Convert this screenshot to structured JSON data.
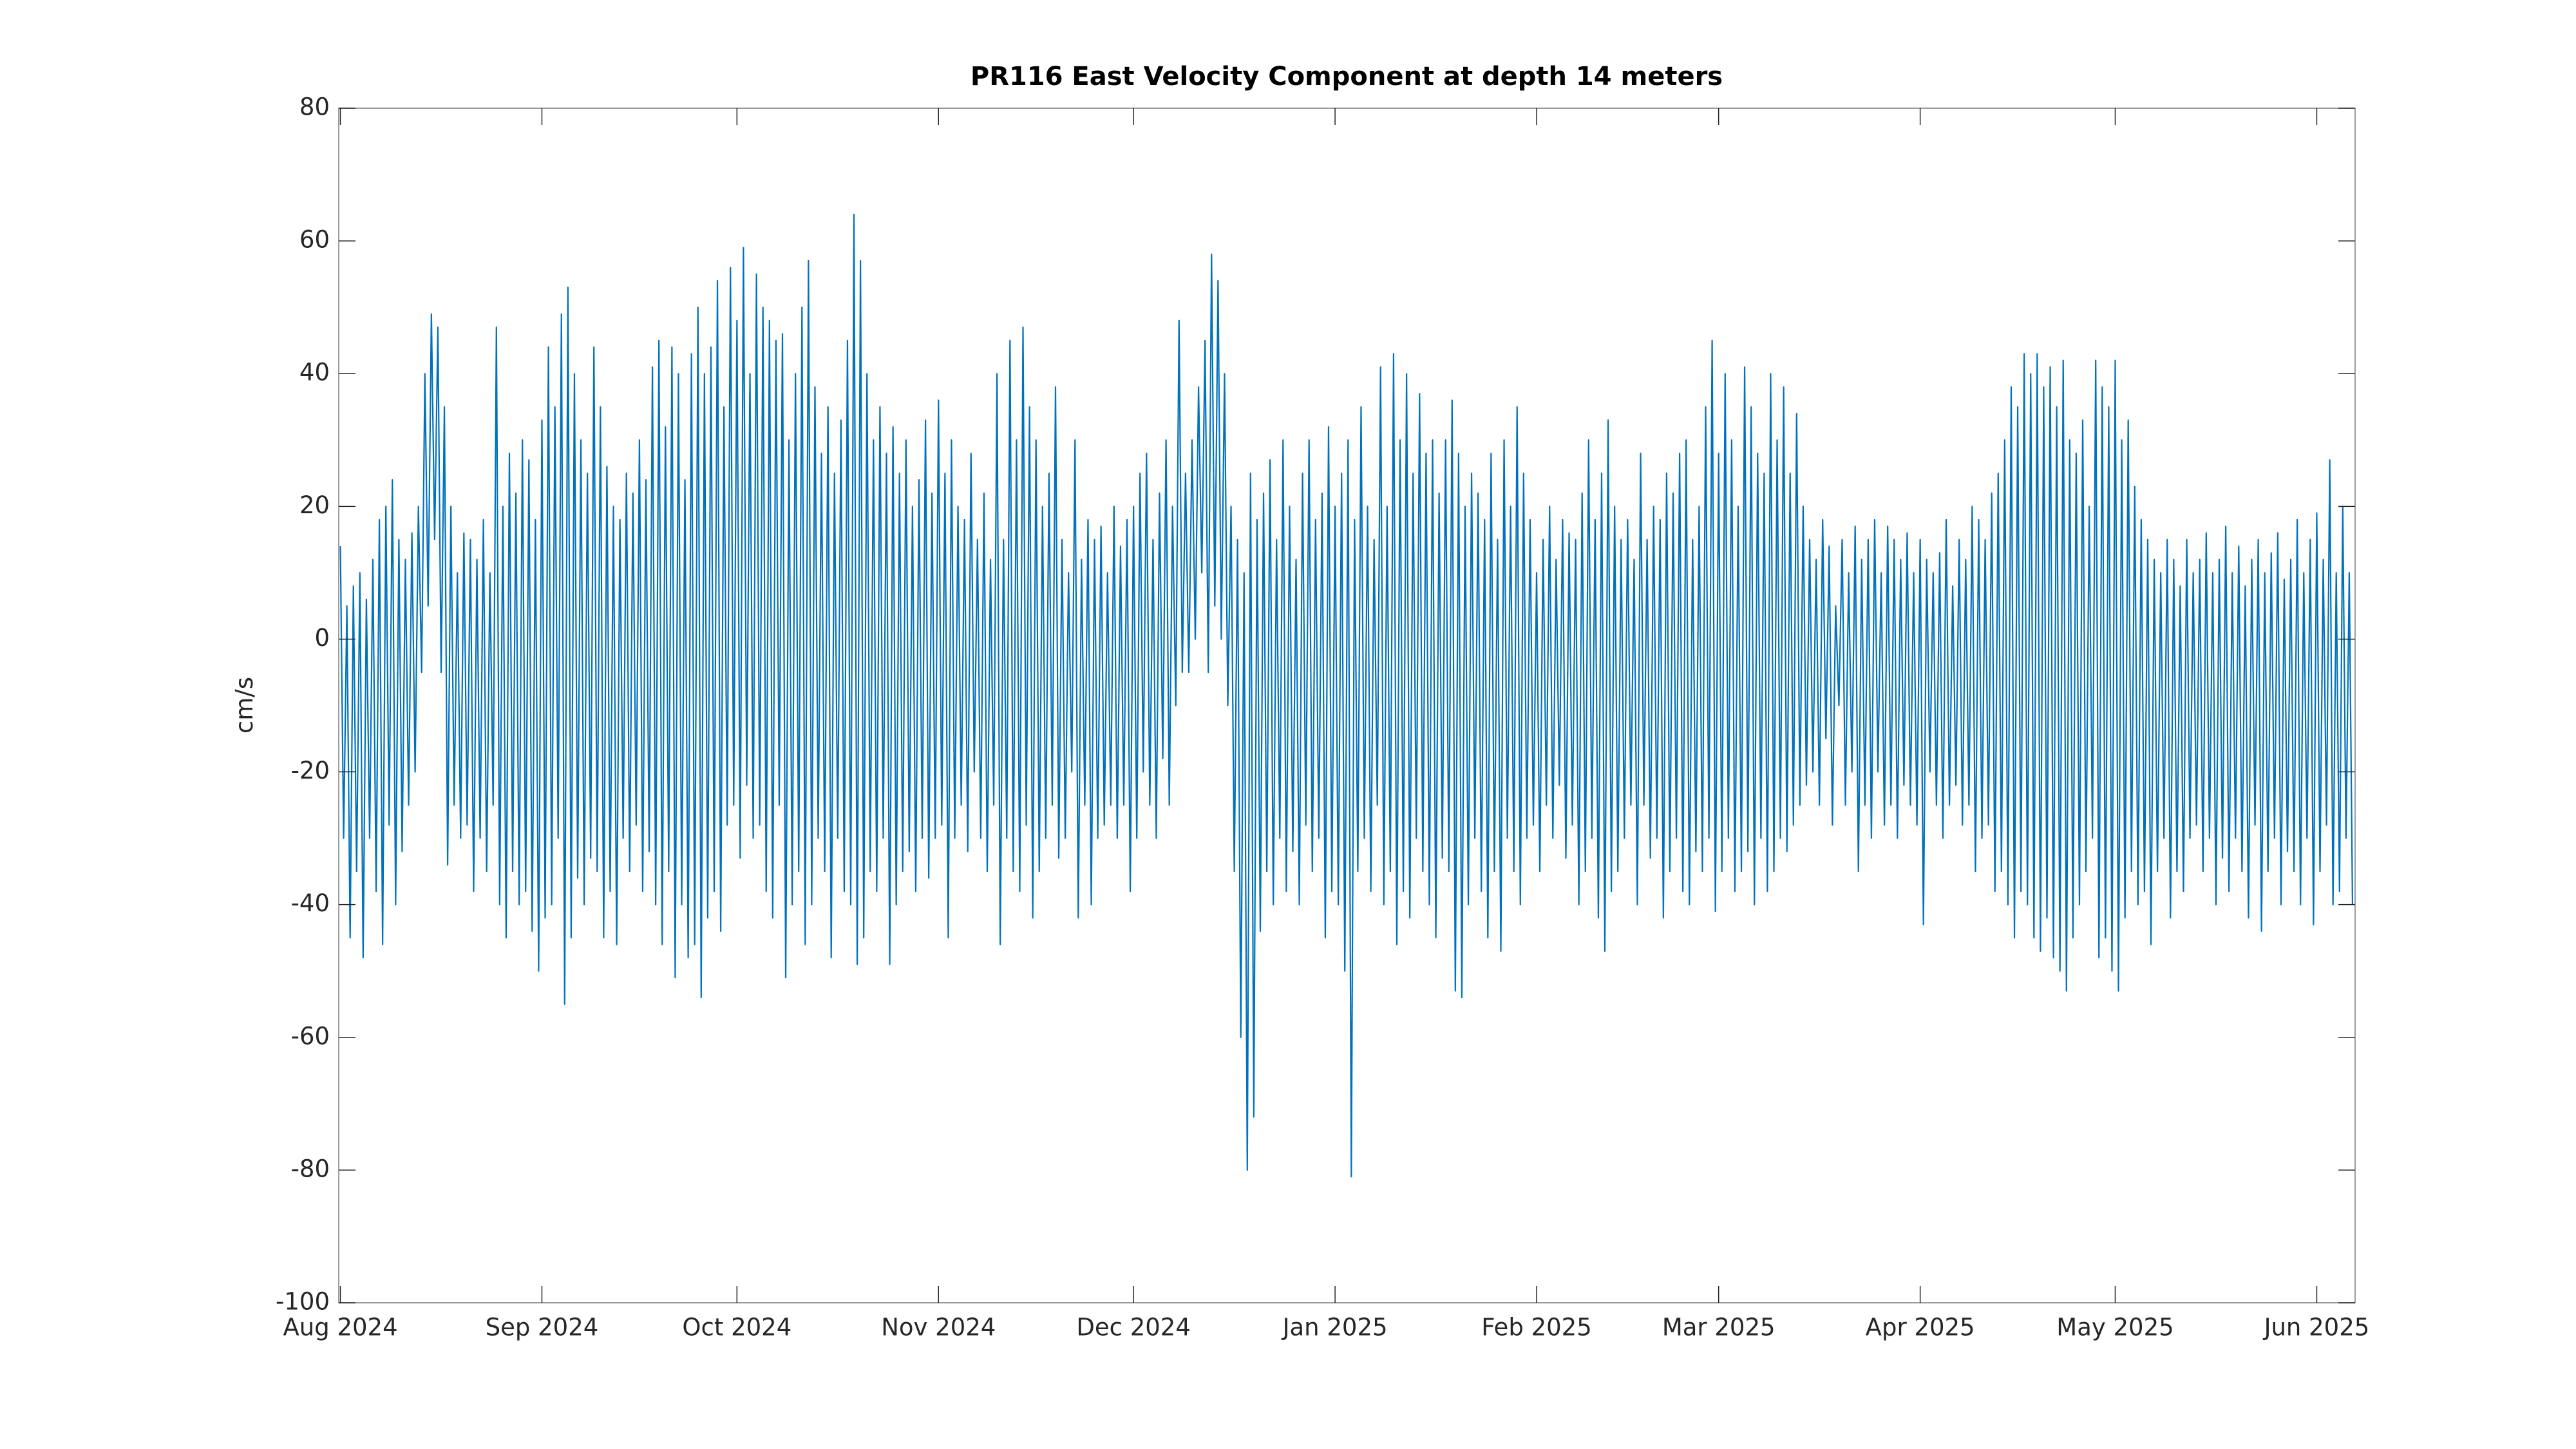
{
  "chart_data": {
    "type": "line",
    "title": "PR116 East Velocity Component at depth 14 meters",
    "y_label": "cm/s",
    "xlim": [
      -0.25,
      309.9
    ],
    "xticks": [
      {
        "value": 0,
        "label": "Aug 2024"
      },
      {
        "value": 31,
        "label": "Sep 2024"
      },
      {
        "value": 61,
        "label": "Oct 2024"
      },
      {
        "value": 92,
        "label": "Nov 2024"
      },
      {
        "value": 122,
        "label": "Dec 2024"
      },
      {
        "value": 153,
        "label": "Jan 2025"
      },
      {
        "value": 184,
        "label": "Feb 2025"
      },
      {
        "value": 212,
        "label": "Mar 2025"
      },
      {
        "value": 243,
        "label": "Apr 2025"
      },
      {
        "value": 273,
        "label": "May 2025"
      },
      {
        "value": 304,
        "label": "Jun 2025"
      }
    ],
    "ylim": [
      -100,
      80
    ],
    "yticks": [
      -100,
      -80,
      -60,
      -40,
      -20,
      0,
      20,
      40,
      60,
      80
    ],
    "grid": false,
    "x": [
      0,
      0.5,
      1,
      1.5,
      2,
      2.5,
      3,
      3.5,
      4,
      4.5,
      5,
      5.5,
      6,
      6.5,
      7,
      7.5,
      8,
      8.5,
      9,
      9.5,
      10,
      10.5,
      11,
      11.5,
      12,
      12.5,
      13,
      13.5,
      14,
      14.5,
      15,
      15.5,
      16,
      16.5,
      17,
      17.5,
      18,
      18.5,
      19,
      19.5,
      20,
      20.5,
      21,
      21.5,
      22,
      22.5,
      23,
      23.5,
      24,
      24.5,
      25,
      25.5,
      26,
      26.5,
      27,
      27.5,
      28,
      28.5,
      29,
      29.5,
      30,
      30.5,
      31,
      31.5,
      32,
      32.5,
      33,
      33.5,
      34,
      34.5,
      35,
      35.5,
      36,
      36.5,
      37,
      37.5,
      38,
      38.5,
      39,
      39.5,
      40,
      40.5,
      41,
      41.5,
      42,
      42.5,
      43,
      43.5,
      44,
      44.5,
      45,
      45.5,
      46,
      46.5,
      47,
      47.5,
      48,
      48.5,
      49,
      49.5,
      50,
      50.5,
      51,
      51.5,
      52,
      52.5,
      53,
      53.5,
      54,
      54.5,
      55,
      55.5,
      56,
      56.5,
      57,
      57.5,
      58,
      58.5,
      59,
      59.5,
      60,
      60.5,
      61,
      61.5,
      62,
      62.5,
      63,
      63.5,
      64,
      64.5,
      65,
      65.5,
      66,
      66.5,
      67,
      67.5,
      68,
      68.5,
      69,
      69.5,
      70,
      70.5,
      71,
      71.5,
      72,
      72.5,
      73,
      73.5,
      74,
      74.5,
      75,
      75.5,
      76,
      76.5,
      77,
      77.5,
      78,
      78.5,
      79,
      79.5,
      80,
      80.5,
      81,
      81.5,
      82,
      82.5,
      83,
      83.5,
      84,
      84.5,
      85,
      85.5,
      86,
      86.5,
      87,
      87.5,
      88,
      88.5,
      89,
      89.5,
      90,
      90.5,
      91,
      91.5,
      92,
      92.5,
      93,
      93.5,
      94,
      94.5,
      95,
      95.5,
      96,
      96.5,
      97,
      97.5,
      98,
      98.5,
      99,
      99.5,
      100,
      100.5,
      101,
      101.5,
      102,
      102.5,
      103,
      103.5,
      104,
      104.5,
      105,
      105.5,
      106,
      106.5,
      107,
      107.5,
      108,
      108.5,
      109,
      109.5,
      110,
      110.5,
      111,
      111.5,
      112,
      112.5,
      113,
      113.5,
      114,
      114.5,
      115,
      115.5,
      116,
      116.5,
      117,
      117.5,
      118,
      118.5,
      119,
      119.5,
      120,
      120.5,
      121,
      121.5,
      122,
      122.5,
      123,
      123.5,
      124,
      124.5,
      125,
      125.5,
      126,
      126.5,
      127,
      127.5,
      128,
      128.5,
      129,
      129.5,
      130,
      130.5,
      131,
      131.5,
      132,
      132.5,
      133,
      133.5,
      134,
      134.5,
      135,
      135.5,
      136,
      136.5,
      137,
      137.5,
      138,
      138.5,
      139,
      139.5,
      140,
      140.5,
      141,
      141.5,
      142,
      142.5,
      143,
      143.5,
      144,
      144.5,
      145,
      145.5,
      146,
      146.5,
      147,
      147.5,
      148,
      148.5,
      149,
      149.5,
      150,
      150.5,
      151,
      151.5,
      152,
      152.5,
      153,
      153.5,
      154,
      154.5,
      155,
      155.5,
      156,
      156.5,
      157,
      157.5,
      158,
      158.5,
      159,
      159.5,
      160,
      160.5,
      161,
      161.5,
      162,
      162.5,
      163,
      163.5,
      164,
      164.5,
      165,
      165.5,
      166,
      166.5,
      167,
      167.5,
      168,
      168.5,
      169,
      169.5,
      170,
      170.5,
      171,
      171.5,
      172,
      172.5,
      173,
      173.5,
      174,
      174.5,
      175,
      175.5,
      176,
      176.5,
      177,
      177.5,
      178,
      178.5,
      179,
      179.5,
      180,
      180.5,
      181,
      181.5,
      182,
      182.5,
      183,
      183.5,
      184,
      184.5,
      185,
      185.5,
      186,
      186.5,
      187,
      187.5,
      188,
      188.5,
      189,
      189.5,
      190,
      190.5,
      191,
      191.5,
      192,
      192.5,
      193,
      193.5,
      194,
      194.5,
      195,
      195.5,
      196,
      196.5,
      197,
      197.5,
      198,
      198.5,
      199,
      199.5,
      200,
      200.5,
      201,
      201.5,
      202,
      202.5,
      203,
      203.5,
      204,
      204.5,
      205,
      205.5,
      206,
      206.5,
      207,
      207.5,
      208,
      208.5,
      209,
      209.5,
      210,
      210.5,
      211,
      211.5,
      212,
      212.5,
      213,
      213.5,
      214,
      214.5,
      215,
      215.5,
      216,
      216.5,
      217,
      217.5,
      218,
      218.5,
      219,
      219.5,
      220,
      220.5,
      221,
      221.5,
      222,
      222.5,
      223,
      223.5,
      224,
      224.5,
      225,
      225.5,
      226,
      226.5,
      227,
      227.5,
      228,
      228.5,
      229,
      229.5,
      230,
      230.5,
      231,
      231.5,
      232,
      232.5,
      233,
      233.5,
      234,
      234.5,
      235,
      235.5,
      236,
      236.5,
      237,
      237.5,
      238,
      238.5,
      239,
      239.5,
      240,
      240.5,
      241,
      241.5,
      242,
      242.5,
      243,
      243.5,
      244,
      244.5,
      245,
      245.5,
      246,
      246.5,
      247,
      247.5,
      248,
      248.5,
      249,
      249.5,
      250,
      250.5,
      251,
      251.5,
      252,
      252.5,
      253,
      253.5,
      254,
      254.5,
      255,
      255.5,
      256,
      256.5,
      257,
      257.5,
      258,
      258.5,
      259,
      259.5,
      260,
      260.5,
      261,
      261.5,
      262,
      262.5,
      263,
      263.5,
      264,
      264.5,
      265,
      265.5,
      266,
      266.5,
      267,
      267.5,
      268,
      268.5,
      269,
      269.5,
      270,
      270.5,
      271,
      271.5,
      272,
      272.5,
      273,
      273.5,
      274,
      274.5,
      275,
      275.5,
      276,
      276.5,
      277,
      277.5,
      278,
      278.5,
      279,
      279.5,
      280,
      280.5,
      281,
      281.5,
      282,
      282.5,
      283,
      283.5,
      284,
      284.5,
      285,
      285.5,
      286,
      286.5,
      287,
      287.5,
      288,
      288.5,
      289,
      289.5,
      290,
      290.5,
      291,
      291.5,
      292,
      292.5,
      293,
      293.5,
      294,
      294.5,
      295,
      295.5,
      296,
      296.5,
      297,
      297.5,
      298,
      298.5,
      299,
      299.5,
      300,
      300.5,
      301,
      301.5,
      302,
      302.5,
      303,
      303.5,
      304,
      304.5,
      305,
      305.5,
      306,
      306.5,
      307,
      307.5,
      308,
      308.5,
      309,
      309.5
    ],
    "series": [
      {
        "color": "#0072bd",
        "values": [
          14,
          -30,
          5,
          -45,
          8,
          -35,
          10,
          -48,
          6,
          -30,
          12,
          -38,
          18,
          -46,
          20,
          -28,
          24,
          -40,
          15,
          -32,
          12,
          -25,
          16,
          -20,
          20,
          -5,
          40,
          5,
          49,
          15,
          47,
          -5,
          35,
          -34,
          20,
          -25,
          10,
          -30,
          16,
          -28,
          15,
          -38,
          12,
          -30,
          18,
          -35,
          10,
          -25,
          47,
          -40,
          20,
          -45,
          28,
          -35,
          22,
          -40,
          30,
          -38,
          27,
          -44,
          18,
          -50,
          33,
          -42,
          44,
          -40,
          35,
          -30,
          49,
          -55,
          53,
          -45,
          40,
          -36,
          30,
          -40,
          25,
          -33,
          44,
          -35,
          35,
          -45,
          26,
          -38,
          20,
          -46,
          18,
          -30,
          25,
          -35,
          22,
          -28,
          30,
          -38,
          24,
          -32,
          41,
          -40,
          45,
          -46,
          32,
          -35,
          44,
          -51,
          40,
          -40,
          24,
          -48,
          43,
          -46,
          50,
          -54,
          40,
          -42,
          44,
          -38,
          54,
          -44,
          35,
          -28,
          56,
          -25,
          48,
          -33,
          59,
          -22,
          40,
          -30,
          55,
          -28,
          50,
          -38,
          48,
          -42,
          45,
          -25,
          46,
          -51,
          30,
          -40,
          40,
          -35,
          50,
          -46,
          57,
          -40,
          38,
          -30,
          28,
          -35,
          35,
          -48,
          25,
          -30,
          33,
          -38,
          45,
          -40,
          64,
          -49,
          57,
          -45,
          40,
          -35,
          30,
          -38,
          35,
          -30,
          28,
          -49,
          32,
          -40,
          25,
          -35,
          30,
          -32,
          20,
          -38,
          24,
          -30,
          33,
          -36,
          22,
          -30,
          36,
          -28,
          25,
          -45,
          30,
          -30,
          20,
          -25,
          18,
          -32,
          28,
          -20,
          15,
          -30,
          22,
          -35,
          12,
          -25,
          40,
          -46,
          15,
          -30,
          45,
          -35,
          30,
          -38,
          47,
          -28,
          35,
          -42,
          30,
          -35,
          20,
          -30,
          25,
          -25,
          38,
          -33,
          15,
          -30,
          10,
          -20,
          30,
          -42,
          12,
          -25,
          18,
          -40,
          15,
          -30,
          17,
          -28,
          10,
          -25,
          20,
          -30,
          14,
          -25,
          18,
          -38,
          20,
          -30,
          25,
          -20,
          28,
          -25,
          15,
          -30,
          22,
          -18,
          30,
          -25,
          20,
          -10,
          48,
          -5,
          25,
          -5,
          30,
          0,
          38,
          10,
          45,
          -5,
          58,
          5,
          54,
          0,
          40,
          -10,
          20,
          -35,
          15,
          -60,
          10,
          -80,
          25,
          -72,
          18,
          -44,
          22,
          -35,
          27,
          -40,
          15,
          -30,
          30,
          -38,
          20,
          -32,
          12,
          -40,
          25,
          -28,
          30,
          -35,
          18,
          -30,
          22,
          -45,
          32,
          -38,
          20,
          -40,
          25,
          -50,
          30,
          -81,
          18,
          -35,
          35,
          -30,
          20,
          -38,
          15,
          -25,
          41,
          -40,
          20,
          -35,
          43,
          -46,
          30,
          -38,
          40,
          -42,
          25,
          -30,
          37,
          -35,
          28,
          -40,
          30,
          -45,
          22,
          -33,
          30,
          -35,
          36,
          -53,
          28,
          -54,
          20,
          -40,
          25,
          -30,
          22,
          -38,
          18,
          -45,
          28,
          -35,
          15,
          -47,
          30,
          -30,
          20,
          -35,
          35,
          -40,
          25,
          -30,
          18,
          -28,
          10,
          -35,
          15,
          -25,
          20,
          -30,
          12,
          -22,
          18,
          -33,
          16,
          -28,
          15,
          -40,
          22,
          -35,
          30,
          -30,
          18,
          -42,
          25,
          -47,
          33,
          -38,
          20,
          -35,
          15,
          -30,
          18,
          -25,
          12,
          -40,
          28,
          -25,
          15,
          -33,
          20,
          -30,
          18,
          -42,
          25,
          -35,
          22,
          -30,
          28,
          -38,
          30,
          -40,
          15,
          -32,
          20,
          -35,
          35,
          -30,
          45,
          -41,
          28,
          -35,
          40,
          -30,
          30,
          -38,
          20,
          -35,
          41,
          -32,
          35,
          -40,
          28,
          -30,
          25,
          -38,
          40,
          -35,
          30,
          -30,
          38,
          -32,
          25,
          -28,
          34,
          -25,
          20,
          -22,
          15,
          -20,
          12,
          -25,
          18,
          -15,
          14,
          -28,
          5,
          -10,
          15,
          -25,
          10,
          -20,
          17,
          -35,
          12,
          -25,
          15,
          -30,
          18,
          -20,
          10,
          -28,
          17,
          -25,
          15,
          -30,
          12,
          -22,
          16,
          -25,
          10,
          -28,
          15,
          -43,
          12,
          -20,
          10,
          -25,
          13,
          -30,
          18,
          -25,
          8,
          -22,
          15,
          -28,
          12,
          -25,
          20,
          -35,
          18,
          -30,
          15,
          -28,
          22,
          -38,
          25,
          -35,
          30,
          -40,
          38,
          -45,
          35,
          -38,
          43,
          -40,
          40,
          -45,
          43,
          -47,
          38,
          -42,
          41,
          -48,
          35,
          -50,
          42,
          -53,
          30,
          -45,
          28,
          -40,
          33,
          -35,
          20,
          -30,
          42,
          -48,
          38,
          -45,
          35,
          -50,
          42,
          -53,
          30,
          -42,
          33,
          -35,
          23,
          -40,
          18,
          -38,
          15,
          -46,
          12,
          -35,
          10,
          -30,
          15,
          -42,
          12,
          -35,
          8,
          -38,
          15,
          -30,
          10,
          -28,
          12,
          -35,
          16,
          -30,
          10,
          -40,
          12,
          -33,
          17,
          -38,
          10,
          -30,
          14,
          -35,
          8,
          -42,
          12,
          -28,
          15,
          -44,
          10,
          -35,
          13,
          -30,
          16,
          -40,
          9,
          -32,
          12,
          -35,
          18,
          -40,
          10,
          -30,
          15,
          -43,
          19,
          -35,
          12,
          -28,
          27,
          -40,
          10,
          -38,
          20,
          -30,
          10,
          -40
        ]
      }
    ]
  }
}
